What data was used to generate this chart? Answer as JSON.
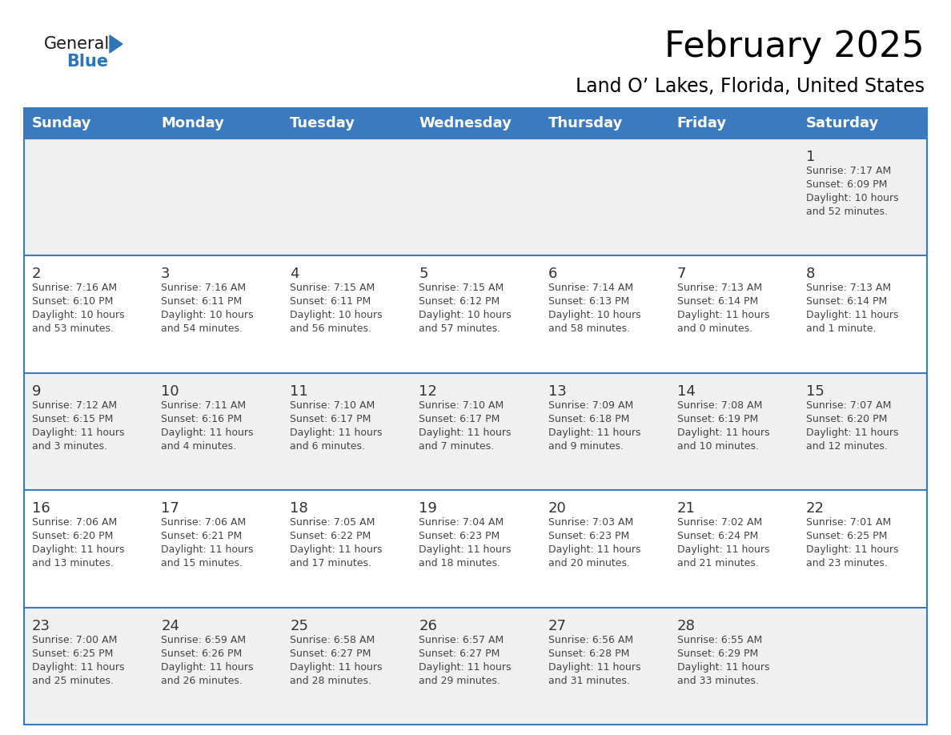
{
  "title": "February 2025",
  "subtitle": "Land O’ Lakes, Florida, United States",
  "header_bg": "#3A7ABF",
  "header_text_color": "#FFFFFF",
  "cell_bg_white": "#FFFFFF",
  "cell_bg_gray": "#F0F0F0",
  "cell_text_color": "#444444",
  "day_num_color": "#333333",
  "border_color": "#3A7ABF",
  "days_of_week": [
    "Sunday",
    "Monday",
    "Tuesday",
    "Wednesday",
    "Thursday",
    "Friday",
    "Saturday"
  ],
  "weeks": [
    [
      {
        "day": null,
        "sunrise": null,
        "sunset": null,
        "daylight": null
      },
      {
        "day": null,
        "sunrise": null,
        "sunset": null,
        "daylight": null
      },
      {
        "day": null,
        "sunrise": null,
        "sunset": null,
        "daylight": null
      },
      {
        "day": null,
        "sunrise": null,
        "sunset": null,
        "daylight": null
      },
      {
        "day": null,
        "sunrise": null,
        "sunset": null,
        "daylight": null
      },
      {
        "day": null,
        "sunrise": null,
        "sunset": null,
        "daylight": null
      },
      {
        "day": 1,
        "sunrise": "7:17 AM",
        "sunset": "6:09 PM",
        "daylight": "10 hours\nand 52 minutes."
      }
    ],
    [
      {
        "day": 2,
        "sunrise": "7:16 AM",
        "sunset": "6:10 PM",
        "daylight": "10 hours\nand 53 minutes."
      },
      {
        "day": 3,
        "sunrise": "7:16 AM",
        "sunset": "6:11 PM",
        "daylight": "10 hours\nand 54 minutes."
      },
      {
        "day": 4,
        "sunrise": "7:15 AM",
        "sunset": "6:11 PM",
        "daylight": "10 hours\nand 56 minutes."
      },
      {
        "day": 5,
        "sunrise": "7:15 AM",
        "sunset": "6:12 PM",
        "daylight": "10 hours\nand 57 minutes."
      },
      {
        "day": 6,
        "sunrise": "7:14 AM",
        "sunset": "6:13 PM",
        "daylight": "10 hours\nand 58 minutes."
      },
      {
        "day": 7,
        "sunrise": "7:13 AM",
        "sunset": "6:14 PM",
        "daylight": "11 hours\nand 0 minutes."
      },
      {
        "day": 8,
        "sunrise": "7:13 AM",
        "sunset": "6:14 PM",
        "daylight": "11 hours\nand 1 minute."
      }
    ],
    [
      {
        "day": 9,
        "sunrise": "7:12 AM",
        "sunset": "6:15 PM",
        "daylight": "11 hours\nand 3 minutes."
      },
      {
        "day": 10,
        "sunrise": "7:11 AM",
        "sunset": "6:16 PM",
        "daylight": "11 hours\nand 4 minutes."
      },
      {
        "day": 11,
        "sunrise": "7:10 AM",
        "sunset": "6:17 PM",
        "daylight": "11 hours\nand 6 minutes."
      },
      {
        "day": 12,
        "sunrise": "7:10 AM",
        "sunset": "6:17 PM",
        "daylight": "11 hours\nand 7 minutes."
      },
      {
        "day": 13,
        "sunrise": "7:09 AM",
        "sunset": "6:18 PM",
        "daylight": "11 hours\nand 9 minutes."
      },
      {
        "day": 14,
        "sunrise": "7:08 AM",
        "sunset": "6:19 PM",
        "daylight": "11 hours\nand 10 minutes."
      },
      {
        "day": 15,
        "sunrise": "7:07 AM",
        "sunset": "6:20 PM",
        "daylight": "11 hours\nand 12 minutes."
      }
    ],
    [
      {
        "day": 16,
        "sunrise": "7:06 AM",
        "sunset": "6:20 PM",
        "daylight": "11 hours\nand 13 minutes."
      },
      {
        "day": 17,
        "sunrise": "7:06 AM",
        "sunset": "6:21 PM",
        "daylight": "11 hours\nand 15 minutes."
      },
      {
        "day": 18,
        "sunrise": "7:05 AM",
        "sunset": "6:22 PM",
        "daylight": "11 hours\nand 17 minutes."
      },
      {
        "day": 19,
        "sunrise": "7:04 AM",
        "sunset": "6:23 PM",
        "daylight": "11 hours\nand 18 minutes."
      },
      {
        "day": 20,
        "sunrise": "7:03 AM",
        "sunset": "6:23 PM",
        "daylight": "11 hours\nand 20 minutes."
      },
      {
        "day": 21,
        "sunrise": "7:02 AM",
        "sunset": "6:24 PM",
        "daylight": "11 hours\nand 21 minutes."
      },
      {
        "day": 22,
        "sunrise": "7:01 AM",
        "sunset": "6:25 PM",
        "daylight": "11 hours\nand 23 minutes."
      }
    ],
    [
      {
        "day": 23,
        "sunrise": "7:00 AM",
        "sunset": "6:25 PM",
        "daylight": "11 hours\nand 25 minutes."
      },
      {
        "day": 24,
        "sunrise": "6:59 AM",
        "sunset": "6:26 PM",
        "daylight": "11 hours\nand 26 minutes."
      },
      {
        "day": 25,
        "sunrise": "6:58 AM",
        "sunset": "6:27 PM",
        "daylight": "11 hours\nand 28 minutes."
      },
      {
        "day": 26,
        "sunrise": "6:57 AM",
        "sunset": "6:27 PM",
        "daylight": "11 hours\nand 29 minutes."
      },
      {
        "day": 27,
        "sunrise": "6:56 AM",
        "sunset": "6:28 PM",
        "daylight": "11 hours\nand 31 minutes."
      },
      {
        "day": 28,
        "sunrise": "6:55 AM",
        "sunset": "6:29 PM",
        "daylight": "11 hours\nand 33 minutes."
      },
      {
        "day": null,
        "sunrise": null,
        "sunset": null,
        "daylight": null
      }
    ]
  ],
  "logo_general_color": "#1a1a1a",
  "logo_blue_color": "#2E75B6",
  "logo_triangle_color": "#2E75B6",
  "title_fontsize": 32,
  "subtitle_fontsize": 17,
  "header_fontsize": 13,
  "day_num_fontsize": 13,
  "cell_info_fontsize": 9
}
